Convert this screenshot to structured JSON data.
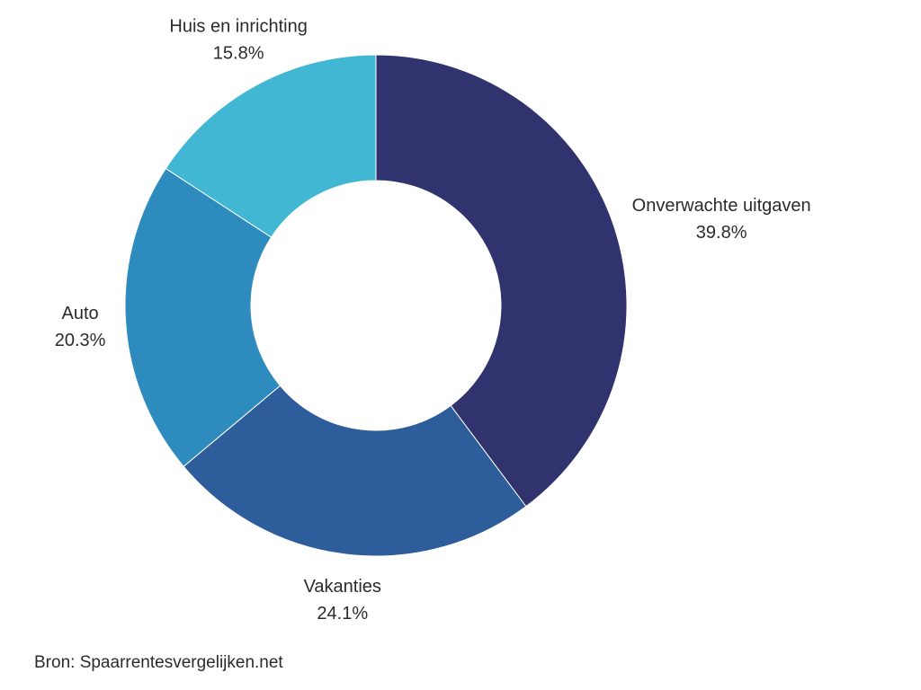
{
  "chart_data": {
    "type": "pie",
    "style": "donut",
    "categories": [
      "Onverwachte uitgaven",
      "Vakanties",
      "Auto",
      "Huis en inrichting"
    ],
    "values": [
      39.8,
      24.1,
      20.3,
      15.8
    ],
    "value_labels": [
      "39.8%",
      "24.1%",
      "20.3%",
      "15.8%"
    ],
    "colors": [
      "#30336e",
      "#2d5d9a",
      "#2d8bbd",
      "#41b7d4"
    ],
    "start_angle": "12 o'clock",
    "direction": "clockwise",
    "legend": "none",
    "labels_placement": "outside each slice"
  },
  "source": "Bron: Spaarrentesvergelijken.net"
}
